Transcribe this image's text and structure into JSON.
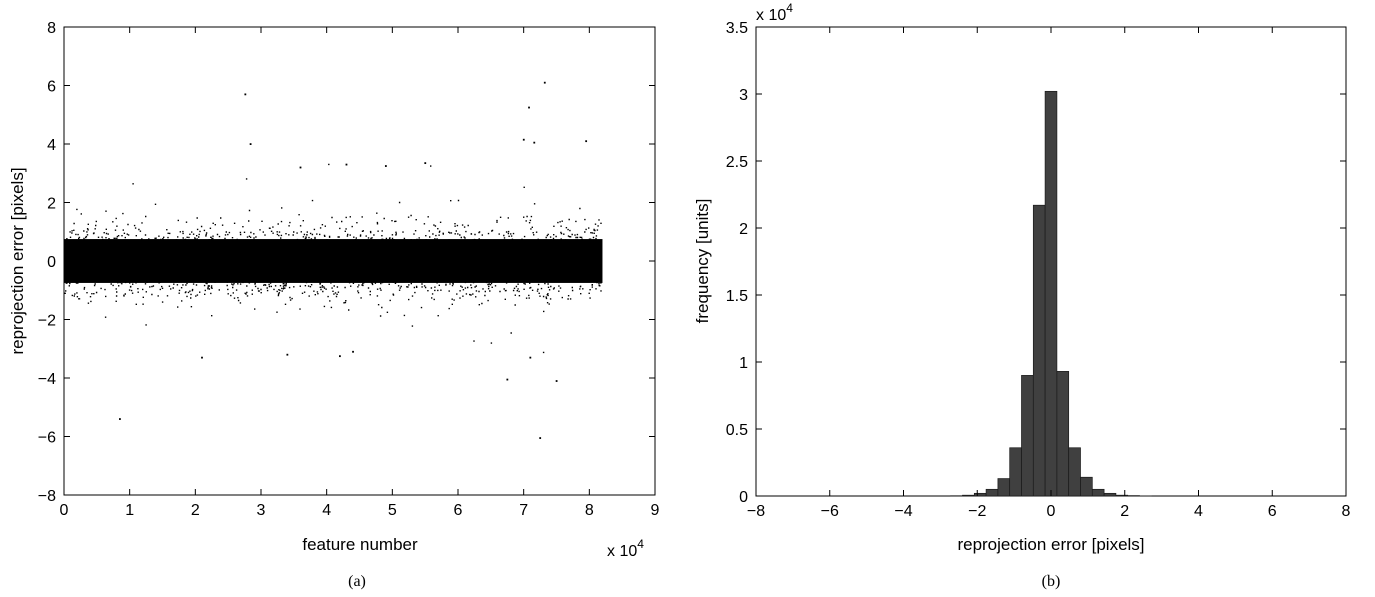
{
  "chart_data": [
    {
      "type": "scatter",
      "panel_label": "(a)",
      "xlabel": "feature number",
      "ylabel": "reprojection error [pixels]",
      "x_multiplier_label": "x 10",
      "x_multiplier_exp": "4",
      "xlim": [
        0,
        90000
      ],
      "ylim": [
        -8,
        8
      ],
      "x_ticks": [
        0,
        1,
        2,
        3,
        4,
        5,
        6,
        7,
        8,
        9
      ],
      "y_ticks": [
        -8,
        -6,
        -4,
        -2,
        0,
        2,
        4,
        6,
        8
      ],
      "x_data_range": [
        0,
        82000
      ],
      "point_count_approx": 82000,
      "distribution": "dense band, roughly normal around 0 with most values within about ±1, sparse points out to ±3",
      "outliers": [
        {
          "x": 27600,
          "y": 5.7
        },
        {
          "x": 73200,
          "y": 6.1
        },
        {
          "x": 70800,
          "y": 5.25
        },
        {
          "x": 70000,
          "y": 4.15
        },
        {
          "x": 71600,
          "y": 4.05
        },
        {
          "x": 79500,
          "y": 4.1
        },
        {
          "x": 28400,
          "y": 4.0
        },
        {
          "x": 72500,
          "y": -6.05
        },
        {
          "x": 8500,
          "y": -5.4
        },
        {
          "x": 67500,
          "y": -4.05
        },
        {
          "x": 75000,
          "y": -4.1
        },
        {
          "x": 34000,
          "y": -3.2
        },
        {
          "x": 42000,
          "y": -3.25
        },
        {
          "x": 21000,
          "y": -3.3
        },
        {
          "x": 71000,
          "y": -3.3
        },
        {
          "x": 44000,
          "y": -3.1
        },
        {
          "x": 55000,
          "y": 3.35
        },
        {
          "x": 43000,
          "y": 3.3
        },
        {
          "x": 49000,
          "y": 3.25
        },
        {
          "x": 36000,
          "y": 3.2
        }
      ]
    },
    {
      "type": "bar",
      "panel_label": "(b)",
      "xlabel": "reprojection error [pixels]",
      "ylabel": "frequency [units]",
      "y_multiplier_label": "x 10",
      "y_multiplier_exp": "4",
      "xlim": [
        -8,
        8
      ],
      "ylim": [
        0,
        35000
      ],
      "x_ticks": [
        -8,
        -6,
        -4,
        -2,
        0,
        2,
        4,
        6,
        8
      ],
      "y_ticks": [
        0,
        0.5,
        1,
        1.5,
        2,
        2.5,
        3,
        3.5
      ],
      "bin_width": 0.32,
      "bin_centers": [
        -2.56,
        -2.24,
        -1.92,
        -1.6,
        -1.28,
        -0.96,
        -0.64,
        -0.32,
        0.0,
        0.32,
        0.64,
        0.96,
        1.28,
        1.6,
        1.92,
        2.24,
        2.56
      ],
      "values": [
        20,
        60,
        200,
        500,
        1300,
        3600,
        9000,
        21700,
        30200,
        9300,
        3600,
        1400,
        500,
        200,
        60,
        30,
        10
      ],
      "bar_color": "#404040"
    }
  ]
}
